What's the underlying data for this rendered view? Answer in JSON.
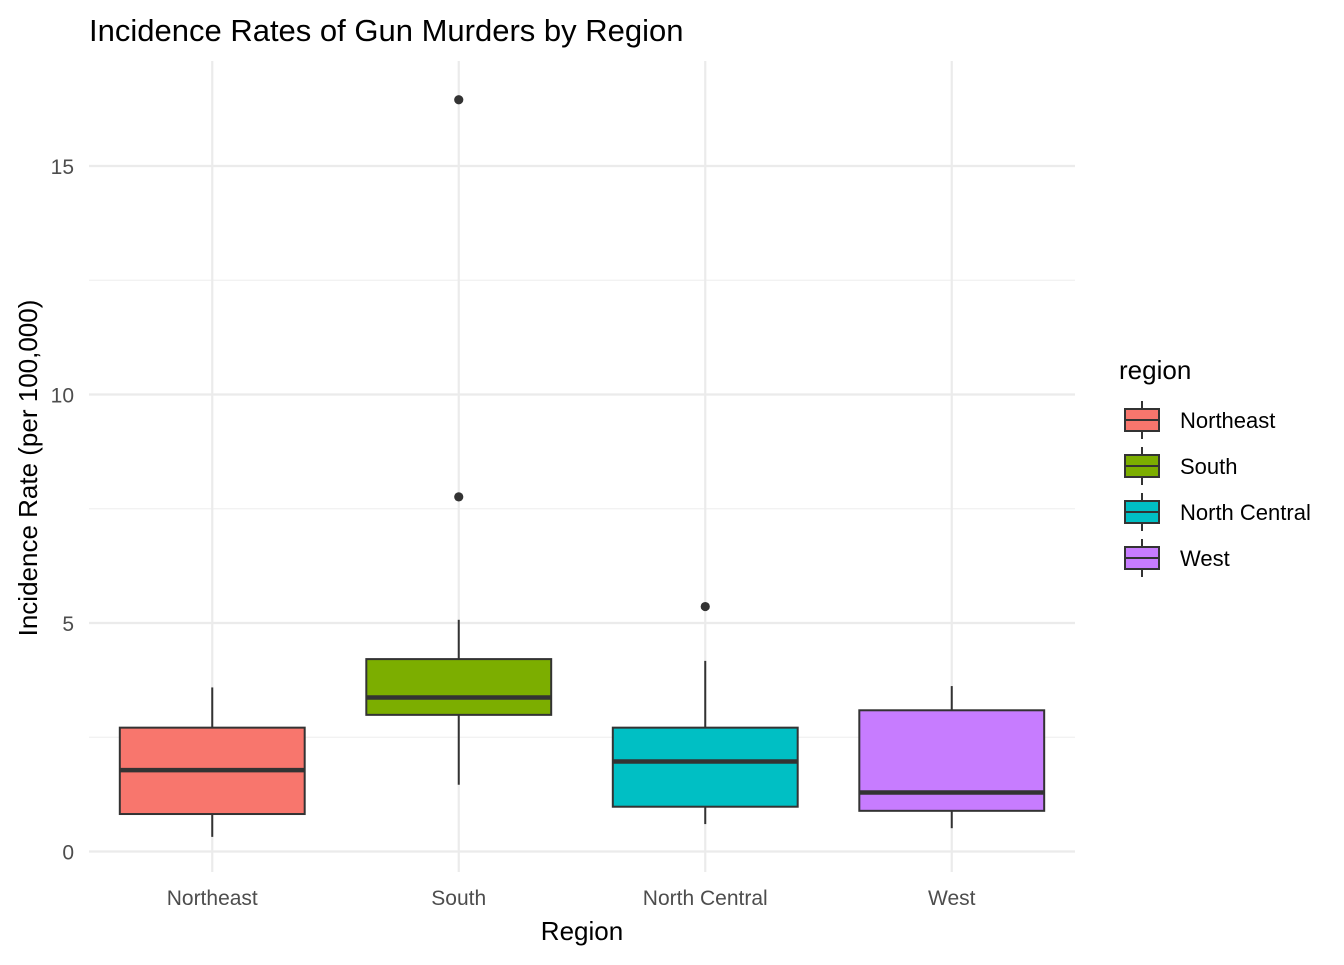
{
  "chart_data": {
    "type": "boxplot",
    "title": "Incidence Rates of Gun Murders by Region",
    "xlabel": "Region",
    "ylabel": "Incidence Rate (per 100,000)",
    "ylim": [
      -0.35,
      17.2
    ],
    "yticks": [
      0,
      5,
      10,
      15
    ],
    "ytick_labels": [
      "0",
      "5",
      "10",
      "15"
    ],
    "grid": true,
    "legend": {
      "title": "region",
      "placement": "right",
      "entries": [
        "Northeast",
        "South",
        "North Central",
        "West"
      ]
    },
    "categories": [
      "Northeast",
      "South",
      "North Central",
      "West"
    ],
    "colors": [
      "#F8766D",
      "#7CAE00",
      "#00BFC4",
      "#C77CFF"
    ],
    "boxes": [
      {
        "category": "Northeast",
        "min": 0.32,
        "q1": 0.82,
        "median": 1.78,
        "q3": 2.71,
        "max": 3.59,
        "outliers": []
      },
      {
        "category": "South",
        "min": 1.46,
        "q1": 2.99,
        "median": 3.37,
        "q3": 4.21,
        "max": 5.07,
        "outliers": [
          7.76,
          16.45
        ]
      },
      {
        "category": "North Central",
        "min": 0.6,
        "q1": 0.98,
        "median": 1.97,
        "q3": 2.71,
        "max": 4.17,
        "outliers": [
          5.36
        ]
      },
      {
        "category": "West",
        "min": 0.51,
        "q1": 0.89,
        "median": 1.29,
        "q3": 3.09,
        "max": 3.62,
        "outliers": []
      }
    ]
  }
}
